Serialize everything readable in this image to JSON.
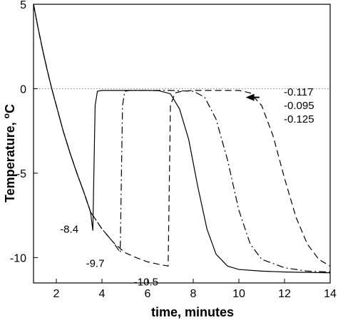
{
  "chart_data": {
    "type": "line",
    "xlabel": "time, minutes",
    "ylabel_main": "Temperature, ",
    "ylabel_super": "o",
    "ylabel_unit": "C",
    "xlim": [
      1,
      14
    ],
    "ylim": [
      -11.5,
      5
    ],
    "x_ticks": [
      2,
      4,
      6,
      8,
      10,
      12,
      14
    ],
    "y_ticks": [
      5,
      0,
      -5,
      -10
    ],
    "grid": false,
    "reference_line": {
      "y": 0,
      "style": "dotted"
    },
    "series": [
      {
        "dash": "solid",
        "points": [
          [
            1,
            5
          ],
          [
            1.2,
            3.6
          ],
          [
            1.4,
            2.3
          ],
          [
            1.6,
            1.1
          ],
          [
            1.8,
            0.0
          ],
          [
            2.0,
            -1.0
          ],
          [
            2.3,
            -2.5
          ],
          [
            2.6,
            -3.8
          ],
          [
            2.9,
            -5.0
          ],
          [
            3.2,
            -6.1
          ],
          [
            3.5,
            -7.3
          ],
          [
            3.6,
            -8.4
          ],
          [
            3.7,
            -1.0
          ],
          [
            3.8,
            -0.15
          ],
          [
            4.0,
            -0.1
          ],
          [
            5.0,
            -0.1
          ],
          [
            6.0,
            -0.1
          ],
          [
            6.5,
            -0.12
          ],
          [
            7.0,
            -0.3
          ],
          [
            7.4,
            -1.2
          ],
          [
            7.8,
            -3.0
          ],
          [
            8.2,
            -5.8
          ],
          [
            8.6,
            -8.3
          ],
          [
            9.0,
            -9.8
          ],
          [
            9.5,
            -10.5
          ],
          [
            10,
            -10.7
          ],
          [
            11,
            -10.8
          ],
          [
            12,
            -10.85
          ],
          [
            14,
            -10.9
          ]
        ]
      },
      {
        "dash": "dashdot",
        "points": [
          [
            1,
            5
          ],
          [
            1.2,
            3.6
          ],
          [
            1.4,
            2.3
          ],
          [
            1.6,
            1.1
          ],
          [
            1.8,
            0.0
          ],
          [
            2.0,
            -1.0
          ],
          [
            2.3,
            -2.5
          ],
          [
            2.6,
            -3.8
          ],
          [
            2.9,
            -5.0
          ],
          [
            3.2,
            -6.1
          ],
          [
            3.5,
            -7.3
          ],
          [
            4.0,
            -8.3
          ],
          [
            4.5,
            -9.1
          ],
          [
            4.8,
            -9.7
          ],
          [
            4.9,
            -1.0
          ],
          [
            5.0,
            -0.15
          ],
          [
            5.2,
            -0.1
          ],
          [
            6.0,
            -0.1
          ],
          [
            7.0,
            -0.1
          ],
          [
            8.0,
            -0.15
          ],
          [
            8.5,
            -0.5
          ],
          [
            9.0,
            -1.8
          ],
          [
            9.5,
            -4.2
          ],
          [
            10.0,
            -7.2
          ],
          [
            10.5,
            -9.2
          ],
          [
            11,
            -10.1
          ],
          [
            12,
            -10.6
          ],
          [
            13,
            -10.8
          ],
          [
            14,
            -10.85
          ]
        ]
      },
      {
        "dash": "dashed",
        "points": [
          [
            1,
            5
          ],
          [
            1.2,
            3.6
          ],
          [
            1.4,
            2.3
          ],
          [
            1.6,
            1.1
          ],
          [
            1.8,
            0.0
          ],
          [
            2.0,
            -1.0
          ],
          [
            2.3,
            -2.5
          ],
          [
            2.6,
            -3.8
          ],
          [
            2.9,
            -5.0
          ],
          [
            3.2,
            -6.1
          ],
          [
            3.5,
            -7.3
          ],
          [
            4.0,
            -8.3
          ],
          [
            4.5,
            -9.1
          ],
          [
            5.0,
            -9.7
          ],
          [
            5.5,
            -10.0
          ],
          [
            6.0,
            -10.25
          ],
          [
            6.5,
            -10.4
          ],
          [
            6.9,
            -10.5
          ],
          [
            7.0,
            -1.0
          ],
          [
            7.2,
            -0.25
          ],
          [
            7.5,
            -0.15
          ],
          [
            8.0,
            -0.1
          ],
          [
            9,
            -0.1
          ],
          [
            10,
            -0.1
          ],
          [
            10.5,
            -0.25
          ],
          [
            11,
            -1.0
          ],
          [
            11.5,
            -2.8
          ],
          [
            12,
            -5.3
          ],
          [
            12.5,
            -7.6
          ],
          [
            13,
            -9.2
          ],
          [
            13.5,
            -10.1
          ],
          [
            14,
            -10.5
          ]
        ]
      }
    ],
    "annotations": [
      {
        "text": "-8.4",
        "x": 3.6,
        "y": -8.4
      },
      {
        "text": "-9.7",
        "x": 4.8,
        "y": -9.7
      },
      {
        "text": "-10.5",
        "x": 6.9,
        "y": -10.5
      }
    ],
    "legend_values": [
      "-0.117",
      "-0.095",
      "-0.125"
    ],
    "arrow": {
      "from_x": 10.9,
      "to_x": 10.3,
      "y": -0.3
    }
  }
}
